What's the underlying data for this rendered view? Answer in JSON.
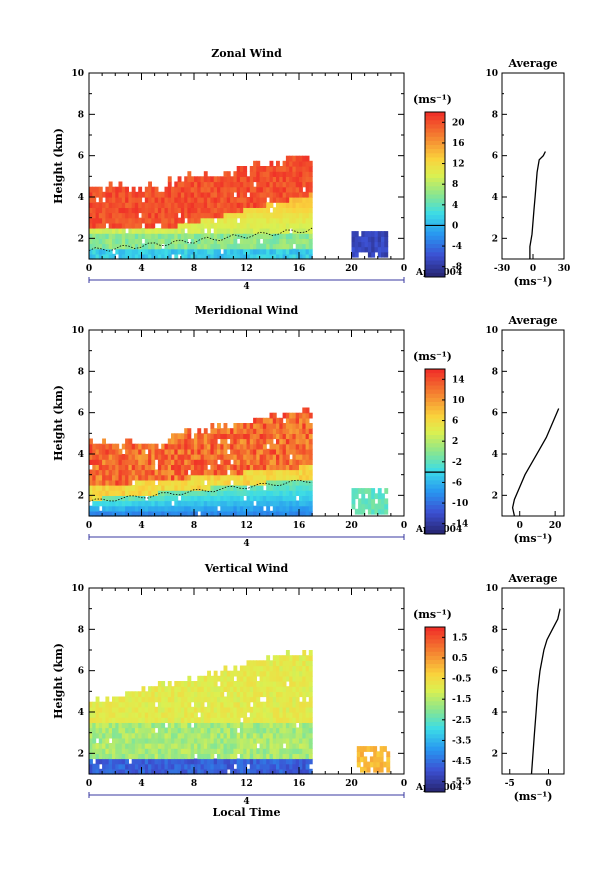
{
  "chart_data": [
    {
      "type": "heatmap",
      "title": "Zonal Wind",
      "ylabel": "Height (km)",
      "xlabel": "",
      "y_ticks": [
        "2",
        "4",
        "6",
        "8",
        "10"
      ],
      "ylim": [
        1,
        10
      ],
      "x_ticks": [
        "0",
        "4",
        "8",
        "12",
        "16",
        "20",
        "0"
      ],
      "xlim": [
        0,
        24
      ],
      "date_label": "Apr 2004",
      "date_day": "4",
      "colorbar": {
        "unit": "(ms⁻¹)",
        "ticks": [
          "20",
          "16",
          "12",
          "8",
          "4",
          "0",
          "-4",
          "-8"
        ],
        "levels": [
          20,
          16,
          12,
          8,
          4,
          0,
          -4,
          -8
        ]
      },
      "average": {
        "title": "Average",
        "xlabel": "(ms⁻¹)",
        "x_ticks": [
          "-30",
          "0",
          "30"
        ],
        "xlim": [
          -30,
          30
        ],
        "y_ticks": [
          "2",
          "4",
          "6",
          "8",
          "10"
        ],
        "profile": [
          [
            1,
            -3
          ],
          [
            1.6,
            -3
          ],
          [
            2.2,
            -1
          ],
          [
            2.8,
            0
          ],
          [
            3.4,
            1
          ],
          [
            4,
            2
          ],
          [
            4.6,
            3
          ],
          [
            5.2,
            4
          ],
          [
            5.8,
            6
          ],
          [
            6,
            10
          ],
          [
            6.2,
            12
          ]
        ]
      }
    },
    {
      "type": "heatmap",
      "title": "Meridional Wind",
      "ylabel": "Height (km)",
      "xlabel": "",
      "y_ticks": [
        "2",
        "4",
        "6",
        "8",
        "10"
      ],
      "ylim": [
        1,
        10
      ],
      "x_ticks": [
        "0",
        "4",
        "8",
        "12",
        "16",
        "20",
        "0"
      ],
      "xlim": [
        0,
        24
      ],
      "date_label": "Apr 2004",
      "date_day": "4",
      "colorbar": {
        "unit": "(ms⁻¹)",
        "ticks": [
          "14",
          "10",
          "6",
          "2",
          "-2",
          "-6",
          "-10",
          "-14"
        ],
        "levels": [
          14,
          10,
          6,
          2,
          -2,
          -6,
          -10,
          -14
        ]
      },
      "average": {
        "title": "Average",
        "xlabel": "(ms⁻¹)",
        "x_ticks": [
          "0",
          "20"
        ],
        "xlim": [
          -10,
          25
        ],
        "y_ticks": [
          "2",
          "4",
          "6",
          "8",
          "10"
        ],
        "profile": [
          [
            1,
            -3
          ],
          [
            1.4,
            -4
          ],
          [
            1.8,
            -3
          ],
          [
            2.4,
            0
          ],
          [
            3,
            3
          ],
          [
            3.6,
            7
          ],
          [
            4.2,
            11
          ],
          [
            4.8,
            15
          ],
          [
            5.4,
            18
          ],
          [
            6,
            21
          ],
          [
            6.2,
            22
          ]
        ]
      }
    },
    {
      "type": "heatmap",
      "title": "Vertical Wind",
      "ylabel": "Height (km)",
      "xlabel": "Local Time",
      "y_ticks": [
        "2",
        "4",
        "6",
        "8",
        "10"
      ],
      "ylim": [
        1,
        10
      ],
      "x_ticks": [
        "0",
        "4",
        "8",
        "12",
        "16",
        "20",
        "0"
      ],
      "xlim": [
        0,
        24
      ],
      "date_label": "Apr 2004",
      "date_day": "4",
      "colorbar": {
        "unit": "(ms⁻¹)",
        "ticks": [
          "1.5",
          "0.5",
          "-0.5",
          "-1.5",
          "-2.5",
          "-3.5",
          "-4.5",
          "-5.5"
        ],
        "levels": [
          1.5,
          0.5,
          -0.5,
          -1.5,
          -2.5,
          -3.5,
          -4.5,
          -5.5
        ]
      },
      "average": {
        "title": "Average",
        "xlabel": "(ms⁻¹)",
        "x_ticks": [
          "-5",
          "0"
        ],
        "xlim": [
          -6,
          2
        ],
        "y_ticks": [
          "2",
          "4",
          "6",
          "8",
          "10"
        ],
        "profile": [
          [
            1,
            -2.2
          ],
          [
            2,
            -2
          ],
          [
            3,
            -1.8
          ],
          [
            4,
            -1.6
          ],
          [
            5,
            -1.4
          ],
          [
            6,
            -1.1
          ],
          [
            7,
            -0.6
          ],
          [
            7.5,
            -0.2
          ],
          [
            8,
            0.5
          ],
          [
            8.5,
            1.2
          ],
          [
            9,
            1.5
          ]
        ]
      }
    }
  ]
}
